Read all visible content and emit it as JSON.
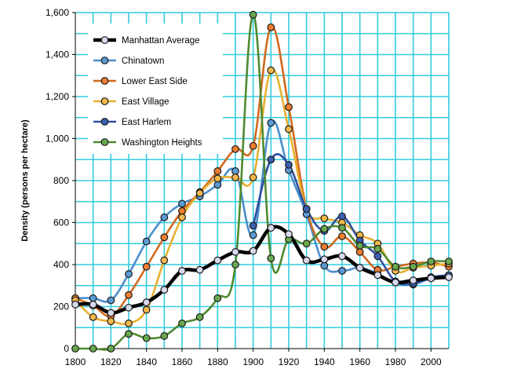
{
  "chart_data": {
    "type": "line",
    "title": "",
    "xlabel": "",
    "ylabel": "Density (persons per hectare)",
    "xlim": [
      1800,
      2010
    ],
    "ylim": [
      0,
      1600
    ],
    "x_ticks": [
      1800,
      1820,
      1840,
      1860,
      1880,
      1900,
      1920,
      1940,
      1960,
      1980,
      2000
    ],
    "x_tick_labels": [
      "1800",
      "1820",
      "1840",
      "1860",
      "1880",
      "1900",
      "1920",
      "1940",
      "1960",
      "1980",
      "2000"
    ],
    "y_ticks": [
      0,
      200,
      400,
      600,
      800,
      1000,
      1200,
      1400,
      1600
    ],
    "y_tick_labels": [
      "0",
      "200",
      "400",
      "600",
      "800",
      "1,000",
      "1,200",
      "1,400",
      "1,600"
    ],
    "grid": true,
    "grid_color": "#33ccdd",
    "legend_position": "top-left",
    "x": [
      1800,
      1810,
      1820,
      1830,
      1840,
      1850,
      1860,
      1870,
      1880,
      1890,
      1900,
      1910,
      1920,
      1930,
      1940,
      1950,
      1960,
      1970,
      1980,
      1990,
      2000,
      2010
    ],
    "series": [
      {
        "name": "Manhattan Average",
        "color": "#000000",
        "marker_fill": "#d8d8ee",
        "line_width": 4.5,
        "values": [
          210,
          210,
          170,
          195,
          220,
          280,
          370,
          375,
          420,
          460,
          465,
          575,
          545,
          420,
          425,
          440,
          385,
          350,
          315,
          325,
          335,
          340
        ]
      },
      {
        "name": "Chinatown",
        "color": "#4a8fcc",
        "marker_fill": "#5b9bd5",
        "line_width": 2.6,
        "values": [
          240,
          240,
          230,
          355,
          510,
          625,
          690,
          725,
          780,
          845,
          540,
          1075,
          850,
          640,
          395,
          370,
          385,
          355,
          315,
          305,
          335,
          345
        ]
      },
      {
        "name": "Lower East Side",
        "color": "#d2691e",
        "marker_fill": "#ed7d31",
        "line_width": 2.6,
        "values": [
          240,
          205,
          155,
          255,
          390,
          530,
          655,
          745,
          845,
          950,
          965,
          1530,
          1150,
          665,
          485,
          535,
          460,
          375,
          390,
          405,
          410,
          390
        ]
      },
      {
        "name": "East Village",
        "color": "#e8b030",
        "marker_fill": "#f2b84b",
        "line_width": 2.6,
        "values": [
          230,
          150,
          130,
          120,
          185,
          420,
          625,
          740,
          810,
          815,
          815,
          1325,
          1045,
          665,
          620,
          600,
          540,
          500,
          370,
          385,
          395,
          405
        ]
      },
      {
        "name": "East Harlem",
        "color": "#2f4f9f",
        "marker_fill": "#3a5fb0",
        "line_width": 2.6,
        "values": [
          null,
          null,
          null,
          null,
          null,
          null,
          null,
          null,
          null,
          null,
          585,
          900,
          875,
          665,
          560,
          630,
          515,
          440,
          320,
          310,
          340,
          350
        ]
      },
      {
        "name": "Washington Heights",
        "color": "#4f8a2f",
        "marker_fill": "#6aa84f",
        "line_width": 2.6,
        "values": [
          0,
          0,
          0,
          70,
          50,
          60,
          120,
          150,
          240,
          400,
          1590,
          430,
          520,
          500,
          570,
          575,
          490,
          475,
          390,
          390,
          415,
          415
        ]
      }
    ]
  }
}
